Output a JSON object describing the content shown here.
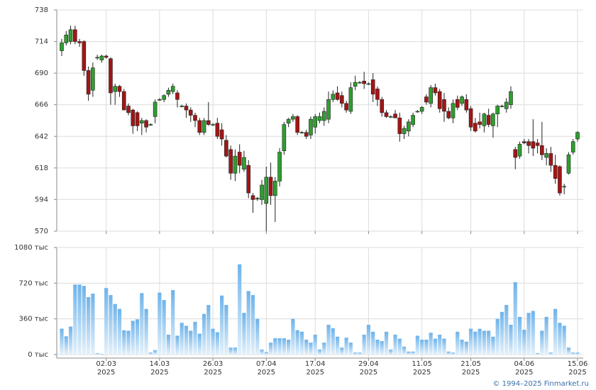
{
  "chart_data": {
    "type": "candlestick",
    "categories": [
      null,
      null,
      null,
      null,
      null,
      null,
      null,
      null,
      null,
      null,
      "02.03",
      null,
      null,
      null,
      null,
      null,
      null,
      null,
      null,
      null,
      null,
      null,
      "14.03",
      null,
      null,
      null,
      null,
      null,
      null,
      null,
      null,
      null,
      null,
      null,
      "26.03",
      null,
      null,
      null,
      null,
      null,
      null,
      null,
      null,
      null,
      null,
      null,
      "07.04",
      null,
      null,
      null,
      null,
      null,
      null,
      null,
      null,
      null,
      null,
      "17.04",
      null,
      null,
      null,
      null,
      null,
      null,
      null,
      null,
      null,
      null,
      null,
      "29.04",
      null,
      null,
      null,
      null,
      null,
      null,
      null,
      null,
      null,
      null,
      null,
      "11.05",
      null,
      null,
      null,
      null,
      null,
      null,
      null,
      null,
      null,
      null,
      "21.05",
      null,
      null,
      null,
      null,
      null,
      null,
      null,
      null,
      null,
      null,
      null,
      "04.06",
      null,
      null,
      null,
      null,
      null,
      null,
      null,
      null,
      null,
      null,
      null,
      "15.06"
    ],
    "year": "2025",
    "ohlc": [
      [
        707,
        716,
        703,
        713
      ],
      [
        713,
        722,
        711,
        719
      ],
      [
        714,
        726,
        712,
        723
      ],
      [
        723,
        726,
        712,
        714
      ],
      [
        714,
        716,
        710,
        713
      ],
      [
        714,
        715,
        688,
        692
      ],
      [
        692,
        695,
        669,
        674
      ],
      [
        677,
        698,
        672,
        694
      ],
      [
        702,
        704,
        700,
        702
      ],
      [
        700,
        704,
        698,
        703
      ],
      [
        703,
        704,
        701,
        702
      ],
      [
        701,
        702,
        666,
        675
      ],
      [
        676,
        682,
        666,
        680
      ],
      [
        680,
        681,
        672,
        676
      ],
      [
        676,
        678,
        662,
        662
      ],
      [
        665,
        667,
        658,
        660
      ],
      [
        662,
        663,
        644,
        650
      ],
      [
        660,
        661,
        646,
        650
      ],
      [
        652,
        656,
        643,
        654
      ],
      [
        654,
        655,
        645,
        649
      ],
      [
        651,
        652,
        650,
        651
      ],
      [
        657,
        670,
        652,
        668
      ],
      [
        670,
        671,
        669,
        670
      ],
      [
        670,
        674,
        668,
        673
      ],
      [
        674,
        679,
        672,
        677
      ],
      [
        676,
        682,
        674,
        680
      ],
      [
        675,
        677,
        664,
        670
      ],
      [
        665,
        666,
        664,
        665
      ],
      [
        665,
        667,
        656,
        662
      ],
      [
        662,
        664,
        653,
        658
      ],
      [
        658,
        660,
        649,
        654
      ],
      [
        654,
        656,
        643,
        645
      ],
      [
        645,
        656,
        643,
        654
      ],
      [
        654,
        668,
        650,
        651
      ],
      [
        651,
        652,
        650,
        651
      ],
      [
        652,
        656,
        640,
        642
      ],
      [
        647,
        652,
        635,
        640
      ],
      [
        639,
        643,
        626,
        627
      ],
      [
        632,
        635,
        609,
        614
      ],
      [
        614,
        632,
        608,
        627
      ],
      [
        630,
        636,
        614,
        620
      ],
      [
        617,
        631,
        615,
        626
      ],
      [
        620,
        624,
        595,
        599
      ],
      [
        597,
        599,
        584,
        594
      ],
      [
        595,
        596,
        593,
        595
      ],
      [
        594,
        609,
        590,
        605
      ],
      [
        591,
        619,
        570,
        611
      ],
      [
        611,
        622,
        590,
        597
      ],
      [
        597,
        611,
        577,
        608
      ],
      [
        608,
        633,
        604,
        630
      ],
      [
        631,
        653,
        628,
        651
      ],
      [
        652,
        656,
        649,
        655
      ],
      [
        655,
        659,
        653,
        657
      ],
      [
        657,
        658,
        643,
        645
      ],
      [
        645,
        646,
        644,
        645
      ],
      [
        645,
        647,
        640,
        642
      ],
      [
        643,
        657,
        640,
        655
      ],
      [
        649,
        659,
        644,
        657
      ],
      [
        654,
        660,
        652,
        657
      ],
      [
        654,
        664,
        650,
        661
      ],
      [
        655,
        676,
        652,
        670
      ],
      [
        670,
        677,
        668,
        674
      ],
      [
        675,
        680,
        669,
        670
      ],
      [
        673,
        676,
        664,
        667
      ],
      [
        667,
        669,
        660,
        662
      ],
      [
        661,
        683,
        659,
        679
      ],
      [
        680,
        688,
        677,
        683
      ],
      [
        683,
        684,
        682,
        683
      ],
      [
        684,
        691,
        678,
        682
      ],
      [
        682,
        683,
        681,
        682
      ],
      [
        685,
        690,
        668,
        674
      ],
      [
        678,
        680,
        665,
        670
      ],
      [
        670,
        672,
        657,
        660
      ],
      [
        660,
        662,
        656,
        657
      ],
      [
        657,
        658,
        656,
        657
      ],
      [
        659,
        662,
        656,
        656
      ],
      [
        656,
        660,
        638,
        644
      ],
      [
        644,
        650,
        640,
        648
      ],
      [
        646,
        655,
        642,
        653
      ],
      [
        651,
        660,
        649,
        658
      ],
      [
        661,
        662,
        660,
        661
      ],
      [
        661,
        665,
        659,
        664
      ],
      [
        672,
        674,
        666,
        668
      ],
      [
        667,
        681,
        664,
        679
      ],
      [
        679,
        682,
        673,
        675
      ],
      [
        676,
        678,
        660,
        663
      ],
      [
        670,
        675,
        653,
        661
      ],
      [
        661,
        664,
        655,
        656
      ],
      [
        656,
        670,
        652,
        667
      ],
      [
        670,
        673,
        662,
        664
      ],
      [
        667,
        673,
        665,
        672
      ],
      [
        670,
        674,
        660,
        662
      ],
      [
        663,
        665,
        646,
        649
      ],
      [
        652,
        656,
        645,
        646
      ],
      [
        653,
        660,
        648,
        651
      ],
      [
        650,
        660,
        645,
        659
      ],
      [
        658,
        663,
        649,
        651
      ],
      [
        650,
        660,
        641,
        659
      ],
      [
        659,
        666,
        649,
        665
      ],
      [
        665,
        666,
        664,
        665
      ],
      [
        663,
        671,
        660,
        668
      ],
      [
        666,
        680,
        663,
        676
      ],
      [
        632,
        634,
        617,
        626
      ],
      [
        627,
        638,
        625,
        636
      ],
      [
        638,
        640,
        636,
        637
      ],
      [
        638,
        640,
        629,
        635
      ],
      [
        638,
        655,
        627,
        633
      ],
      [
        637,
        640,
        629,
        635
      ],
      [
        635,
        653,
        624,
        628
      ],
      [
        626,
        633,
        620,
        629
      ],
      [
        629,
        634,
        615,
        620
      ],
      [
        620,
        628,
        606,
        610
      ],
      [
        619,
        620,
        597,
        599
      ],
      [
        604,
        606,
        598,
        604
      ],
      [
        614,
        630,
        613,
        628
      ],
      [
        630,
        640,
        628,
        638
      ],
      [
        640,
        646,
        638,
        645
      ]
    ],
    "volume": [
      261,
      184,
      282,
      706,
      706,
      692,
      579,
      614,
      14,
      7,
      671,
      600,
      510,
      460,
      245,
      240,
      340,
      355,
      620,
      460,
      20,
      45,
      625,
      550,
      200,
      650,
      190,
      320,
      290,
      240,
      330,
      210,
      410,
      500,
      260,
      225,
      595,
      500,
      70,
      70,
      910,
      420,
      640,
      600,
      360,
      50,
      25,
      120,
      165,
      165,
      165,
      150,
      360,
      245,
      230,
      150,
      120,
      200,
      50,
      120,
      300,
      265,
      180,
      70,
      170,
      120,
      20,
      20,
      200,
      300,
      230,
      150,
      135,
      230,
      50,
      200,
      160,
      80,
      30,
      30,
      190,
      150,
      150,
      220,
      160,
      200,
      160,
      30,
      20,
      230,
      150,
      130,
      260,
      230,
      260,
      240,
      240,
      180,
      360,
      430,
      500,
      300,
      730,
      380,
      250,
      420,
      440,
      15,
      240,
      380,
      20,
      460,
      320,
      290,
      70,
      20,
      20
    ],
    "up_color": "#2f9e2f",
    "down_color": "#a31515",
    "volume_color": "#6fb3ea",
    "ylim": [
      570,
      738
    ],
    "yticks": [
      570,
      594,
      618,
      642,
      666,
      690,
      714,
      738
    ],
    "volume_ylim": [
      0,
      1080
    ],
    "volume_yticks": [
      {
        "value": 0,
        "label": "0 тыс"
      },
      {
        "value": 360,
        "label": "360 тыс"
      },
      {
        "value": 720,
        "label": "720 тыс"
      },
      {
        "value": 1080,
        "label": "1080 тыс"
      }
    ],
    "grid": true,
    "copyright": "© 1994–2025 Finmarket.ru"
  }
}
